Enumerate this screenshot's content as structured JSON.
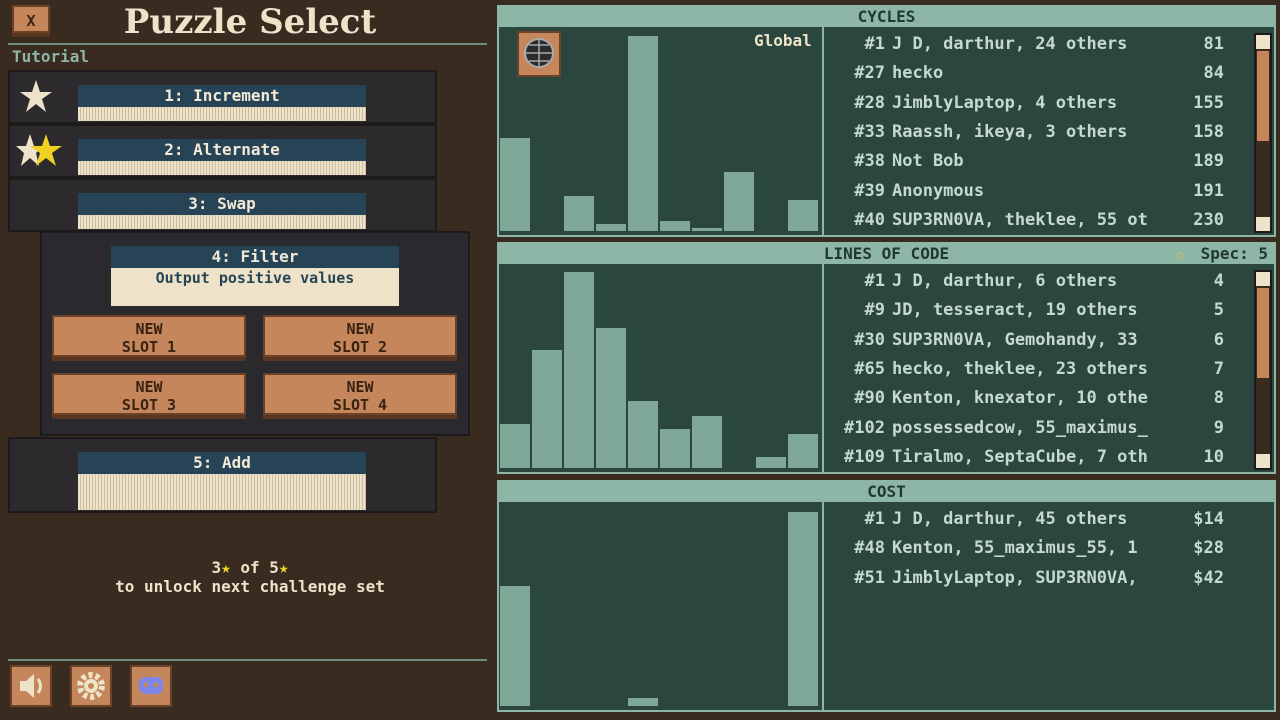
{
  "header": {
    "close": "X",
    "title": "Puzzle Select"
  },
  "section": "Tutorial",
  "puzzles": [
    {
      "label": "1: Increment"
    },
    {
      "label": "2: Alternate"
    },
    {
      "label": "3: Swap"
    },
    {
      "label": "5: Add"
    }
  ],
  "selected": {
    "label": "4: Filter",
    "description": "Output positive values",
    "slots": [
      "NEW\nSLOT 1",
      "NEW\nSLOT 2",
      "NEW\nSLOT 3",
      "NEW\nSLOT 4"
    ]
  },
  "unlock": {
    "have": 3,
    "of": "of",
    "total": 5,
    "text": "to unlock next challenge set"
  },
  "leaderboards": [
    {
      "title": "CYCLES",
      "scope": "Global",
      "histogram": [
        93,
        0,
        35,
        7,
        195,
        10,
        3,
        59,
        0,
        31
      ],
      "entries": [
        {
          "rank": "#1",
          "names": "J D, darthur, 24 others",
          "score": "81"
        },
        {
          "rank": "#27",
          "names": "hecko",
          "score": "84"
        },
        {
          "rank": "#28",
          "names": "JimblyLaptop, 4 others",
          "score": "155"
        },
        {
          "rank": "#33",
          "names": "Raassh, ikeya, 3 others",
          "score": "158"
        },
        {
          "rank": "#38",
          "names": "Not Bob",
          "score": "189"
        },
        {
          "rank": "#39",
          "names": "Anonymous",
          "score": "191"
        },
        {
          "rank": "#40",
          "names": "SUP3RN0VA, theklee, 55 ot",
          "score": "230"
        }
      ]
    },
    {
      "title": "LINES OF CODE",
      "spec": "Spec: 5",
      "histogram": [
        44,
        118,
        196,
        140,
        67,
        39,
        52,
        0,
        11,
        34
      ],
      "entries": [
        {
          "rank": "#1",
          "names": "J D, darthur, 6 others",
          "score": "4"
        },
        {
          "rank": "#9",
          "names": "JD, tesseract, 19 others",
          "score": "5"
        },
        {
          "rank": "#30",
          "names": "SUP3RN0VA, Gemohandy, 33",
          "score": "6"
        },
        {
          "rank": "#65",
          "names": "hecko, theklee, 23 others",
          "score": "7"
        },
        {
          "rank": "#90",
          "names": "Kenton, knexator, 10 othe",
          "score": "8"
        },
        {
          "rank": "#102",
          "names": "possessedcow, 55_maximus_",
          "score": "9"
        },
        {
          "rank": "#109",
          "names": "Tiralmo, SeptaCube, 7 oth",
          "score": "10"
        }
      ]
    },
    {
      "title": "COST",
      "histogram": [
        120,
        0,
        0,
        0,
        8,
        0,
        0,
        0,
        0,
        194
      ],
      "entries": [
        {
          "rank": "#1",
          "names": "J D, darthur, 45 others",
          "score": "$14"
        },
        {
          "rank": "#48",
          "names": "Kenton, 55_maximus_55, 1",
          "score": "$28"
        },
        {
          "rank": "#51",
          "names": "JimblyLaptop, SUP3RN0VA,",
          "score": "$42"
        }
      ]
    }
  ]
}
